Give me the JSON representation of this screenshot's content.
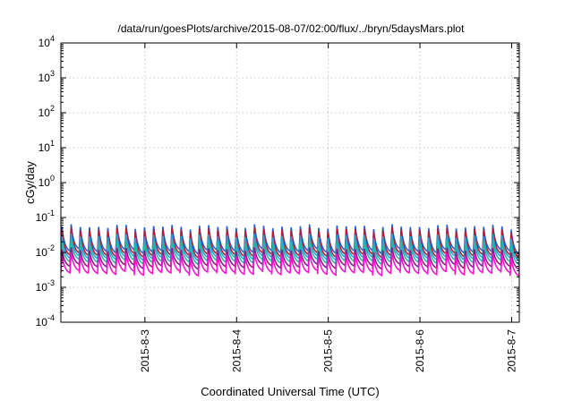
{
  "chart_data": {
    "type": "line",
    "title": "/data/run/goesPlots/archive/2015-08-07/02:00/flux/../bryn/5daysMars.plot",
    "xlabel": "Coordinated Universal Time (UTC)",
    "ylabel": "cGy/day",
    "yscale": "log",
    "ylim": [
      0.0001,
      10000
    ],
    "xlim": [
      "2015-08-02T02:00",
      "2015-08-07T02:00"
    ],
    "grid": true,
    "legend": "none",
    "y_ticks": [
      {
        "base": "10",
        "exp": "-4"
      },
      {
        "base": "10",
        "exp": "-3"
      },
      {
        "base": "10",
        "exp": "-2"
      },
      {
        "base": "10",
        "exp": "-1"
      },
      {
        "base": "10",
        "exp": "0"
      },
      {
        "base": "10",
        "exp": "1"
      },
      {
        "base": "10",
        "exp": "2"
      },
      {
        "base": "10",
        "exp": "3"
      },
      {
        "base": "10",
        "exp": "4"
      }
    ],
    "x_ticks": [
      {
        "label": "2015-8-3",
        "date": "2015-08-03T00:00"
      },
      {
        "label": "2015-8-4",
        "date": "2015-08-04T00:00"
      },
      {
        "label": "2015-8-5",
        "date": "2015-08-05T00:00"
      },
      {
        "label": "2015-8-6",
        "date": "2015-08-06T00:00"
      },
      {
        "label": "2015-8-7",
        "date": "2015-08-07T00:00"
      }
    ],
    "sawtooth_period_hours": 2.4,
    "series": [
      {
        "color": "#1f5fd0",
        "peak": 0.055,
        "trough": 0.011
      },
      {
        "color": "#c0182a",
        "peak": 0.045,
        "trough": 0.0085
      },
      {
        "color": "#2aa0d8",
        "peak": 0.03,
        "trough": 0.007
      },
      {
        "color": "#20b8a8",
        "peak": 0.02,
        "trough": 0.0055
      },
      {
        "color": "#8a1a8a",
        "peak": 0.012,
        "trough": 0.004
      },
      {
        "color": "#ff10d0",
        "peak": 0.0085,
        "trough": 0.0026
      }
    ]
  }
}
